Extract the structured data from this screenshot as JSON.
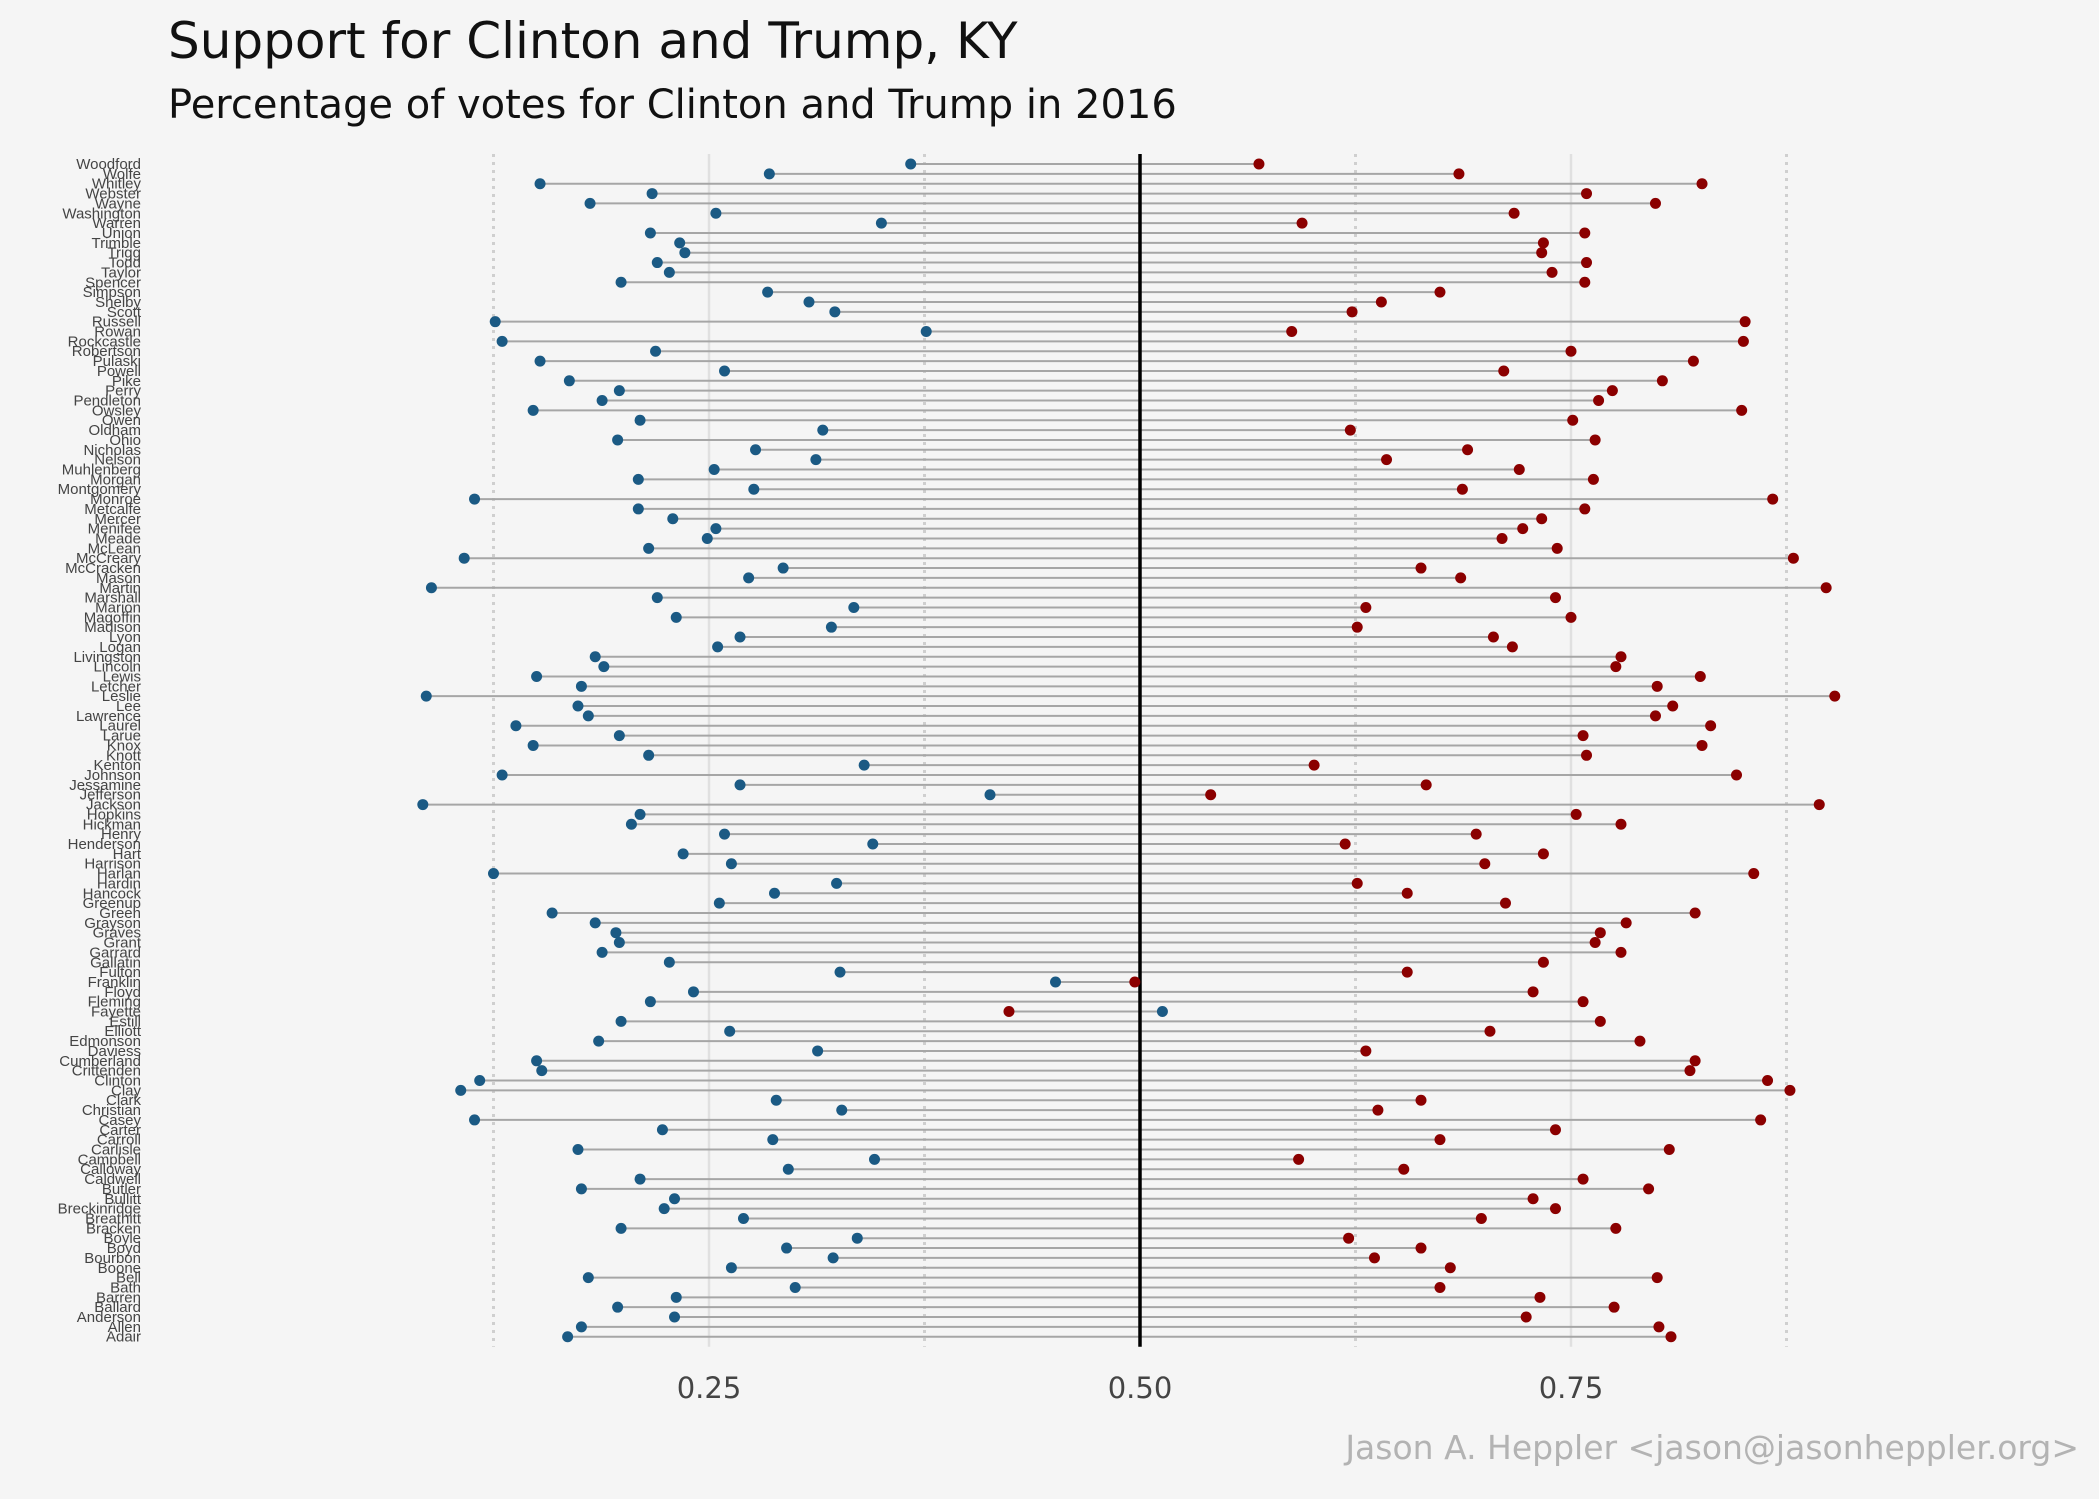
{
  "chart_data": {
    "type": "dumbbell",
    "title": "Support for Clinton and Trump,  KY",
    "subtitle": "Percentage of votes for Clinton and Trump in 2016",
    "caption": "Jason A. Heppler <jason@jasonheppler.org>",
    "x_ticks": [
      "0.25",
      "0.50",
      "0.75"
    ],
    "x_tick_values": [
      0.25,
      0.5,
      0.75
    ],
    "xlim": [
      0.085,
      0.9
    ],
    "reference_line": 0.5,
    "grid": "vertical",
    "colors": {
      "clinton": "#1b5a84",
      "trump": "#8b0000",
      "segment": "#a6a6a6",
      "background": "#f5f5f5"
    },
    "series": [
      {
        "name": "Clinton"
      },
      {
        "name": "Trump"
      }
    ],
    "counties": [
      {
        "name": "Woodford",
        "clinton": 0.367,
        "trump": 0.569
      },
      {
        "name": "Wolfe",
        "clinton": 0.285,
        "trump": 0.685
      },
      {
        "name": "Whitley",
        "clinton": 0.152,
        "trump": 0.826
      },
      {
        "name": "Webster",
        "clinton": 0.217,
        "trump": 0.759
      },
      {
        "name": "Wayne",
        "clinton": 0.181,
        "trump": 0.799
      },
      {
        "name": "Washington",
        "clinton": 0.254,
        "trump": 0.717
      },
      {
        "name": "Warren",
        "clinton": 0.35,
        "trump": 0.594
      },
      {
        "name": "Union",
        "clinton": 0.216,
        "trump": 0.758
      },
      {
        "name": "Trimble",
        "clinton": 0.233,
        "trump": 0.734
      },
      {
        "name": "Trigg",
        "clinton": 0.236,
        "trump": 0.733
      },
      {
        "name": "Todd",
        "clinton": 0.22,
        "trump": 0.759
      },
      {
        "name": "Taylor",
        "clinton": 0.227,
        "trump": 0.739
      },
      {
        "name": "Spencer",
        "clinton": 0.199,
        "trump": 0.758
      },
      {
        "name": "Simpson",
        "clinton": 0.284,
        "trump": 0.674
      },
      {
        "name": "Shelby",
        "clinton": 0.308,
        "trump": 0.64
      },
      {
        "name": "Scott",
        "clinton": 0.323,
        "trump": 0.623
      },
      {
        "name": "Russell",
        "clinton": 0.126,
        "trump": 0.851
      },
      {
        "name": "Rowan",
        "clinton": 0.376,
        "trump": 0.588
      },
      {
        "name": "Rockcastle",
        "clinton": 0.13,
        "trump": 0.85
      },
      {
        "name": "Robertson",
        "clinton": 0.219,
        "trump": 0.75
      },
      {
        "name": "Pulaski",
        "clinton": 0.152,
        "trump": 0.821
      },
      {
        "name": "Powell",
        "clinton": 0.259,
        "trump": 0.711
      },
      {
        "name": "Pike",
        "clinton": 0.169,
        "trump": 0.803
      },
      {
        "name": "Perry",
        "clinton": 0.198,
        "trump": 0.774
      },
      {
        "name": "Pendleton",
        "clinton": 0.188,
        "trump": 0.766
      },
      {
        "name": "Owsley",
        "clinton": 0.148,
        "trump": 0.849
      },
      {
        "name": "Owen",
        "clinton": 0.21,
        "trump": 0.751
      },
      {
        "name": "Oldham",
        "clinton": 0.316,
        "trump": 0.622
      },
      {
        "name": "Ohio",
        "clinton": 0.197,
        "trump": 0.764
      },
      {
        "name": "Nicholas",
        "clinton": 0.277,
        "trump": 0.69
      },
      {
        "name": "Nelson",
        "clinton": 0.312,
        "trump": 0.643
      },
      {
        "name": "Muhlenberg",
        "clinton": 0.253,
        "trump": 0.72
      },
      {
        "name": "Morgan",
        "clinton": 0.209,
        "trump": 0.763
      },
      {
        "name": "Montgomery",
        "clinton": 0.276,
        "trump": 0.687
      },
      {
        "name": "Monroe",
        "clinton": 0.114,
        "trump": 0.867
      },
      {
        "name": "Metcalfe",
        "clinton": 0.209,
        "trump": 0.758
      },
      {
        "name": "Mercer",
        "clinton": 0.229,
        "trump": 0.733
      },
      {
        "name": "Menifee",
        "clinton": 0.254,
        "trump": 0.722
      },
      {
        "name": "Meade",
        "clinton": 0.249,
        "trump": 0.71
      },
      {
        "name": "McLean",
        "clinton": 0.215,
        "trump": 0.742
      },
      {
        "name": "McCreary",
        "clinton": 0.108,
        "trump": 0.879
      },
      {
        "name": "McCracken",
        "clinton": 0.293,
        "trump": 0.663
      },
      {
        "name": "Mason",
        "clinton": 0.273,
        "trump": 0.686
      },
      {
        "name": "Martin",
        "clinton": 0.089,
        "trump": 0.898
      },
      {
        "name": "Marshall",
        "clinton": 0.22,
        "trump": 0.741
      },
      {
        "name": "Marion",
        "clinton": 0.334,
        "trump": 0.631
      },
      {
        "name": "Magoffin",
        "clinton": 0.231,
        "trump": 0.75
      },
      {
        "name": "Madison",
        "clinton": 0.321,
        "trump": 0.626
      },
      {
        "name": "Lyon",
        "clinton": 0.268,
        "trump": 0.705
      },
      {
        "name": "Logan",
        "clinton": 0.255,
        "trump": 0.716
      },
      {
        "name": "Livingston",
        "clinton": 0.184,
        "trump": 0.779
      },
      {
        "name": "Lincoln",
        "clinton": 0.189,
        "trump": 0.776
      },
      {
        "name": "Lewis",
        "clinton": 0.15,
        "trump": 0.825
      },
      {
        "name": "Letcher",
        "clinton": 0.176,
        "trump": 0.8
      },
      {
        "name": "Leslie",
        "clinton": 0.086,
        "trump": 0.903
      },
      {
        "name": "Lee",
        "clinton": 0.174,
        "trump": 0.809
      },
      {
        "name": "Lawrence",
        "clinton": 0.18,
        "trump": 0.799
      },
      {
        "name": "Laurel",
        "clinton": 0.138,
        "trump": 0.831
      },
      {
        "name": "Larue",
        "clinton": 0.198,
        "trump": 0.757
      },
      {
        "name": "Knox",
        "clinton": 0.148,
        "trump": 0.826
      },
      {
        "name": "Knott",
        "clinton": 0.215,
        "trump": 0.759
      },
      {
        "name": "Kenton",
        "clinton": 0.34,
        "trump": 0.601
      },
      {
        "name": "Johnson",
        "clinton": 0.13,
        "trump": 0.846
      },
      {
        "name": "Jessamine",
        "clinton": 0.268,
        "trump": 0.666
      },
      {
        "name": "Jefferson",
        "clinton": 0.413,
        "trump": 0.541
      },
      {
        "name": "Jackson",
        "clinton": 0.084,
        "trump": 0.894
      },
      {
        "name": "Hopkins",
        "clinton": 0.21,
        "trump": 0.753
      },
      {
        "name": "Hickman",
        "clinton": 0.205,
        "trump": 0.779
      },
      {
        "name": "Henry",
        "clinton": 0.259,
        "trump": 0.695
      },
      {
        "name": "Henderson",
        "clinton": 0.345,
        "trump": 0.619
      },
      {
        "name": "Hart",
        "clinton": 0.235,
        "trump": 0.734
      },
      {
        "name": "Harrison",
        "clinton": 0.263,
        "trump": 0.7
      },
      {
        "name": "Harlan",
        "clinton": 0.125,
        "trump": 0.856
      },
      {
        "name": "Hardin",
        "clinton": 0.324,
        "trump": 0.626
      },
      {
        "name": "Hancock",
        "clinton": 0.288,
        "trump": 0.655
      },
      {
        "name": "Greenup",
        "clinton": 0.256,
        "trump": 0.712
      },
      {
        "name": "Green",
        "clinton": 0.159,
        "trump": 0.822
      },
      {
        "name": "Grayson",
        "clinton": 0.184,
        "trump": 0.782
      },
      {
        "name": "Graves",
        "clinton": 0.196,
        "trump": 0.767
      },
      {
        "name": "Grant",
        "clinton": 0.198,
        "trump": 0.764
      },
      {
        "name": "Garrard",
        "clinton": 0.188,
        "trump": 0.779
      },
      {
        "name": "Gallatin",
        "clinton": 0.227,
        "trump": 0.734
      },
      {
        "name": "Fulton",
        "clinton": 0.326,
        "trump": 0.655
      },
      {
        "name": "Franklin",
        "clinton": 0.451,
        "trump": 0.497
      },
      {
        "name": "Floyd",
        "clinton": 0.241,
        "trump": 0.728
      },
      {
        "name": "Fleming",
        "clinton": 0.216,
        "trump": 0.757
      },
      {
        "name": "Fayette",
        "clinton": 0.513,
        "trump": 0.424
      },
      {
        "name": "Estill",
        "clinton": 0.199,
        "trump": 0.767
      },
      {
        "name": "Elliott",
        "clinton": 0.262,
        "trump": 0.703
      },
      {
        "name": "Edmonson",
        "clinton": 0.186,
        "trump": 0.79
      },
      {
        "name": "Daviess",
        "clinton": 0.313,
        "trump": 0.631
      },
      {
        "name": "Cumberland",
        "clinton": 0.15,
        "trump": 0.822
      },
      {
        "name": "Crittenden",
        "clinton": 0.153,
        "trump": 0.819
      },
      {
        "name": "Clinton",
        "clinton": 0.117,
        "trump": 0.864
      },
      {
        "name": "Clay",
        "clinton": 0.106,
        "trump": 0.877
      },
      {
        "name": "Clark",
        "clinton": 0.289,
        "trump": 0.663
      },
      {
        "name": "Christian",
        "clinton": 0.327,
        "trump": 0.638
      },
      {
        "name": "Casey",
        "clinton": 0.114,
        "trump": 0.86
      },
      {
        "name": "Carter",
        "clinton": 0.223,
        "trump": 0.741
      },
      {
        "name": "Carroll",
        "clinton": 0.287,
        "trump": 0.674
      },
      {
        "name": "Carlisle",
        "clinton": 0.174,
        "trump": 0.807
      },
      {
        "name": "Campbell",
        "clinton": 0.346,
        "trump": 0.592
      },
      {
        "name": "Calloway",
        "clinton": 0.296,
        "trump": 0.653
      },
      {
        "name": "Caldwell",
        "clinton": 0.21,
        "trump": 0.757
      },
      {
        "name": "Butler",
        "clinton": 0.176,
        "trump": 0.795
      },
      {
        "name": "Bullitt",
        "clinton": 0.23,
        "trump": 0.728
      },
      {
        "name": "Breckinridge",
        "clinton": 0.224,
        "trump": 0.741
      },
      {
        "name": "Breathitt",
        "clinton": 0.27,
        "trump": 0.698
      },
      {
        "name": "Bracken",
        "clinton": 0.199,
        "trump": 0.776
      },
      {
        "name": "Boyle",
        "clinton": 0.336,
        "trump": 0.621
      },
      {
        "name": "Boyd",
        "clinton": 0.295,
        "trump": 0.663
      },
      {
        "name": "Bourbon",
        "clinton": 0.322,
        "trump": 0.636
      },
      {
        "name": "Boone",
        "clinton": 0.263,
        "trump": 0.68
      },
      {
        "name": "Bell",
        "clinton": 0.18,
        "trump": 0.8
      },
      {
        "name": "Bath",
        "clinton": 0.3,
        "trump": 0.674
      },
      {
        "name": "Barren",
        "clinton": 0.231,
        "trump": 0.732
      },
      {
        "name": "Ballard",
        "clinton": 0.197,
        "trump": 0.775
      },
      {
        "name": "Anderson",
        "clinton": 0.23,
        "trump": 0.724
      },
      {
        "name": "Allen",
        "clinton": 0.176,
        "trump": 0.801
      },
      {
        "name": "Adair",
        "clinton": 0.168,
        "trump": 0.808
      }
    ]
  }
}
